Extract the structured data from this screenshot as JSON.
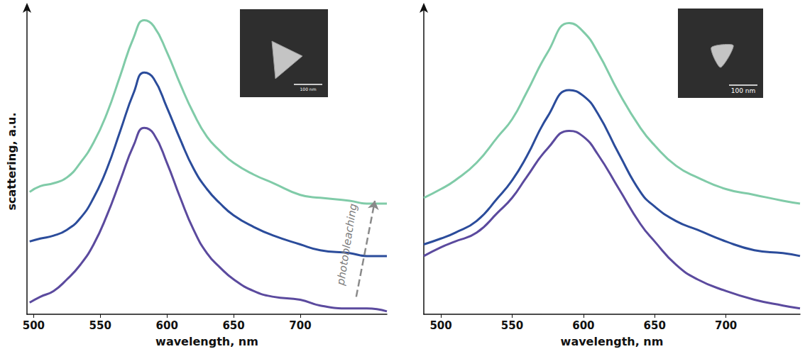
{
  "chart_data": [
    {
      "type": "line",
      "y_label": "scattering, a.u.",
      "x_label": "wavelength, nm",
      "xlim": [
        495,
        765
      ],
      "xticks": [
        500,
        550,
        600,
        650,
        700
      ],
      "ylim": [
        0,
        105
      ],
      "tick_labels": "x",
      "grid": false,
      "inset_label": "100 nm",
      "annotations": [
        {
          "text": "photobleaching",
          "x": 735,
          "y": 24,
          "arrow_from": [
            742,
            6
          ],
          "arrow_to": [
            756,
            39
          ]
        }
      ],
      "x": [
        497,
        505,
        515,
        525,
        535,
        545,
        555,
        565,
        575,
        583,
        590,
        600,
        610,
        620,
        630,
        640,
        650,
        665,
        680,
        700,
        715,
        737,
        750,
        765
      ],
      "series": [
        {
          "color": "#5b4a9e",
          "values": [
            4,
            6,
            8,
            12,
            17,
            24,
            34,
            46,
            58,
            64,
            62,
            52,
            40,
            29,
            21,
            16,
            12,
            8,
            6,
            5,
            3,
            2,
            2,
            1
          ]
        },
        {
          "color": "#2b4c9b",
          "values": [
            25,
            26,
            27,
            29,
            33,
            40,
            50,
            63,
            76,
            83,
            81,
            71,
            60,
            50,
            43,
            38,
            34,
            30,
            27,
            24,
            22,
            21,
            20,
            20
          ]
        },
        {
          "color": "#80cba8",
          "values": [
            42,
            44,
            45,
            47,
            52,
            59,
            69,
            82,
            95,
            101,
            99,
            90,
            79,
            69,
            61,
            56,
            52,
            48,
            45,
            41,
            40,
            39,
            38,
            38
          ]
        }
      ]
    },
    {
      "type": "line",
      "x_label": "wavelength, nm",
      "xlim": [
        488,
        752
      ],
      "xticks": [
        500,
        550,
        600,
        650,
        700
      ],
      "ylim": [
        0,
        105
      ],
      "tick_labels": "x",
      "grid": false,
      "inset_label": "100 nm",
      "x": [
        488,
        500,
        510,
        525,
        540,
        550,
        560,
        575,
        590,
        600,
        610,
        625,
        640,
        650,
        665,
        680,
        700,
        720,
        740,
        752
      ],
      "series": [
        {
          "color": "#5b4a9e",
          "values": [
            20,
            23,
            25,
            28,
            35,
            40,
            47,
            57,
            63,
            61,
            55,
            43,
            31,
            25,
            17,
            12,
            8,
            5,
            3,
            2
          ]
        },
        {
          "color": "#2b4c9b",
          "values": [
            24,
            26,
            28,
            32,
            40,
            46,
            54,
            68,
            77,
            75,
            69,
            55,
            42,
            37,
            32,
            29,
            25,
            22,
            21,
            20
          ]
        },
        {
          "color": "#80cba8",
          "values": [
            40,
            43,
            46,
            52,
            61,
            67,
            76,
            90,
            100,
            97,
            90,
            76,
            64,
            58,
            51,
            47,
            43,
            41,
            39,
            38
          ]
        }
      ]
    }
  ]
}
